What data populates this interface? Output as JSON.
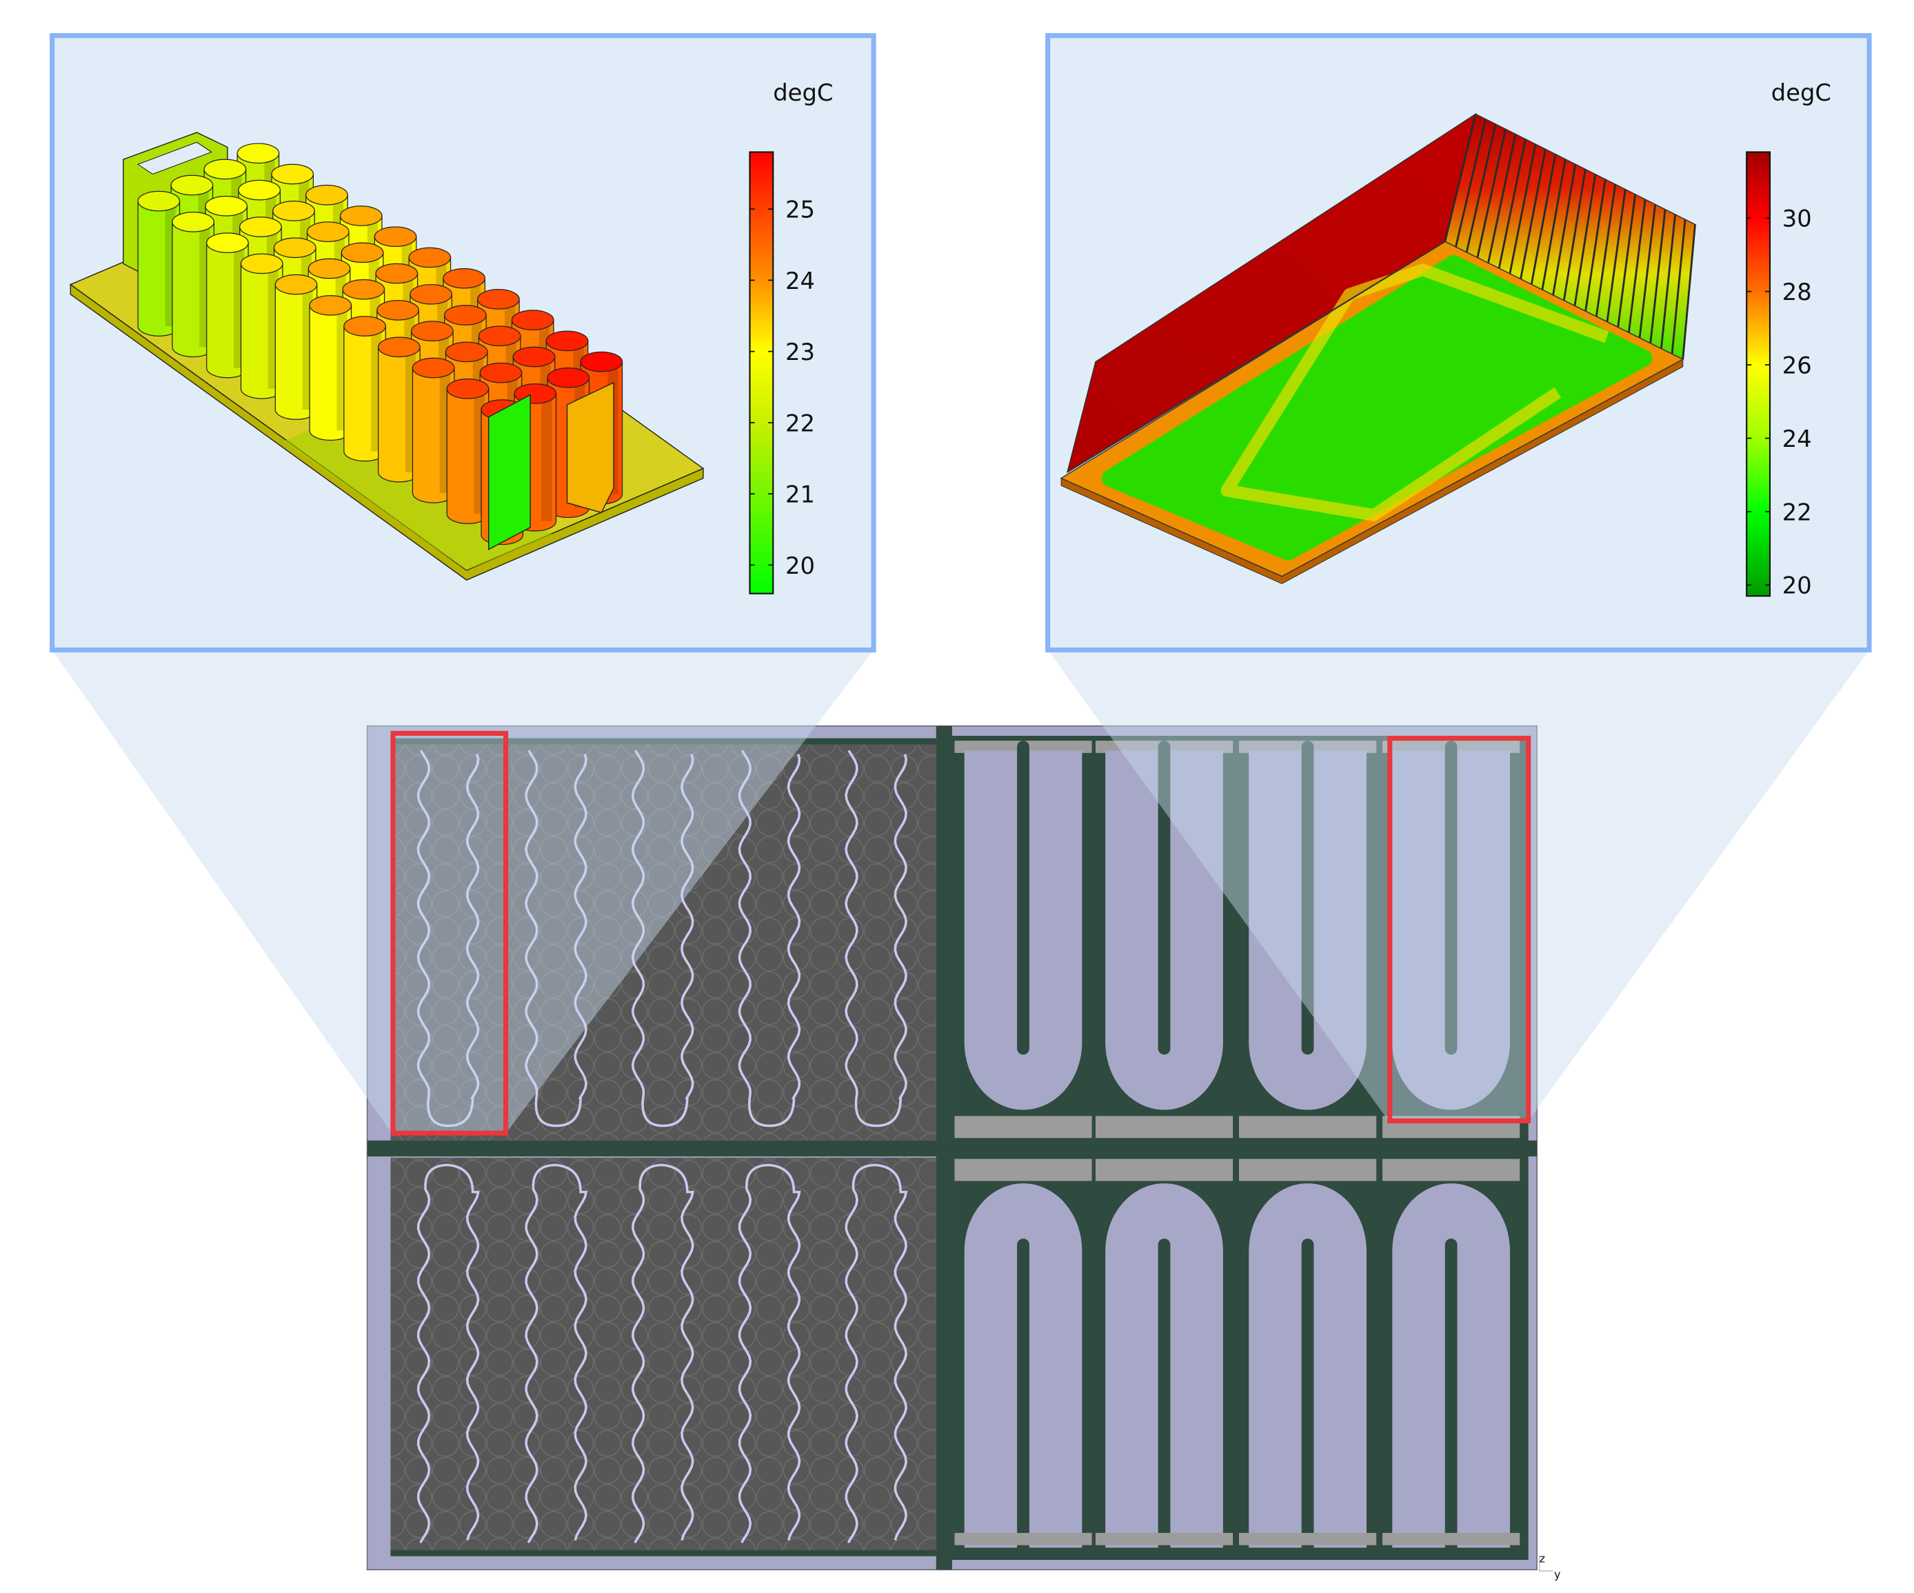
{
  "panels": [
    {
      "id": "battery-cylinders",
      "colorbar": {
        "unit": "degC",
        "ticks": [
          "25",
          "24",
          "23",
          "22",
          "21",
          "20"
        ],
        "range": [
          19.6,
          25.8
        ],
        "colormap": [
          {
            "value": 19.6,
            "color": "#00ff00"
          },
          {
            "value": 22,
            "color": "#c8f000"
          },
          {
            "value": 23,
            "color": "#ffff00"
          },
          {
            "value": 24,
            "color": "#ff9000"
          },
          {
            "value": 25.8,
            "color": "#ff0000"
          }
        ]
      }
    },
    {
      "id": "cold-plate-heatsink",
      "colorbar": {
        "unit": "degC",
        "ticks": [
          "30",
          "28",
          "26",
          "24",
          "22",
          "20"
        ],
        "range": [
          19.7,
          31.8
        ],
        "colormap": [
          {
            "value": 19.7,
            "color": "#009a00"
          },
          {
            "value": 22,
            "color": "#00ff00"
          },
          {
            "value": 24,
            "color": "#a0ff00"
          },
          {
            "value": 26,
            "color": "#ffff00"
          },
          {
            "value": 28,
            "color": "#ff7000"
          },
          {
            "value": 30,
            "color": "#ff0000"
          },
          {
            "value": 31.8,
            "color": "#a00000"
          }
        ]
      }
    }
  ],
  "colors": {
    "panel_background": "#e0edf8",
    "panel_border": "#8ab4f8",
    "highlight_box": "#e8383d",
    "layout_background": "#a7a8c8",
    "cell_area": "#575757",
    "frame": "#2f4a3e"
  },
  "axis_triad": {
    "z": "z",
    "y": "y"
  }
}
